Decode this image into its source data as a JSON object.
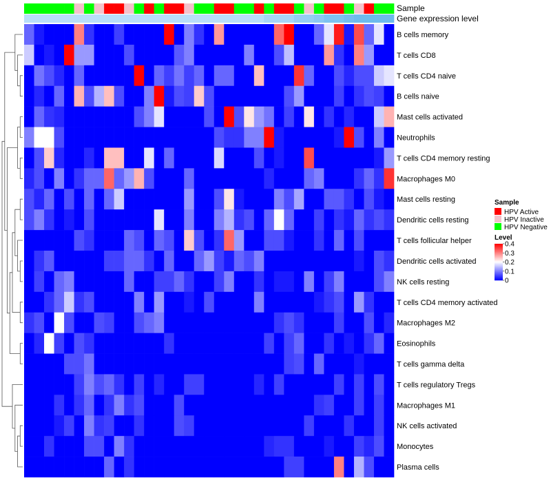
{
  "chart_data": {
    "type": "heatmap",
    "annotations": {
      "sample_label": "Sample",
      "expression_label": "Gene expression level",
      "sample_groups": [
        "G",
        "G",
        "G",
        "G",
        "G",
        "I",
        "G",
        "I",
        "A",
        "A",
        "I",
        "G",
        "A",
        "G",
        "A",
        "A",
        "I",
        "G",
        "G",
        "A",
        "A",
        "G",
        "G",
        "A",
        "G",
        "A",
        "A",
        "G",
        "I",
        "G",
        "A",
        "A",
        "G",
        "I",
        "A",
        "G",
        "G"
      ],
      "expression_colors": [
        "#B9DEF9",
        "#B9DEF9",
        "#B9DEF9",
        "#B9DEF9",
        "#B9DEF9",
        "#B9DEF9",
        "#B9DEF9",
        "#B9DEF9",
        "#B9DEF9",
        "#B9DEF9",
        "#B9DEF9",
        "#B9DEF9",
        "#B9DEF9",
        "#B9DEF9",
        "#B9DEF9",
        "#B9DEF9",
        "#B9DEF9",
        "#B9DEF9",
        "#B9DEF9",
        "#B9DEF9",
        "#B9DEF9",
        "#B9DEF9",
        "#B9DEF9",
        "#B9DEF9",
        "#A7D6F6",
        "#A7D6F6",
        "#A7D6F6",
        "#96CEF3",
        "#96CEF3",
        "#8CC9F2",
        "#7EC3F0",
        "#7EC3F0",
        "#74BEEE",
        "#6DBBED",
        "#6DBBED",
        "#6DBBED",
        "#6DBBED"
      ]
    },
    "rows": [
      "B cells memory",
      "T cells CD8",
      "T cells CD4 naive",
      "B cells naive",
      "Mast cells activated",
      "Neutrophils",
      "T cells CD4 memory resting",
      "Macrophages M0",
      "Mast cells resting",
      "Dendritic cells resting",
      "T cells follicular helper",
      "Dendritic cells activated",
      "NK cells resting",
      "T cells CD4 memory activated",
      "Macrophages M2",
      "Eosinophils",
      "T cells gamma delta",
      "T cells regulatory  Tregs",
      "Macrophages M1",
      "NK cells activated",
      "Monocytes",
      "Plasma cells"
    ],
    "values": [
      [
        0.08,
        0.02,
        0,
        0,
        0,
        0.3,
        0.04,
        0,
        0,
        0.05,
        0,
        0,
        0,
        0,
        0.4,
        0,
        0.1,
        0.04,
        0,
        0.28,
        0,
        0,
        0,
        0,
        0,
        0.32,
        0.4,
        0,
        0,
        0.08,
        0.18,
        0.38,
        0.02,
        0.34,
        0.08,
        0.18,
        0
      ],
      [
        0.16,
        0,
        0.02,
        0,
        0.4,
        0.12,
        0.12,
        0,
        0,
        0,
        0.06,
        0,
        0,
        0,
        0,
        0.07,
        0.1,
        0,
        0,
        0,
        0,
        0,
        0.1,
        0,
        0,
        0.06,
        0.15,
        0,
        0,
        0,
        0.28,
        0.04,
        0,
        0.3,
        0.12,
        0,
        0
      ],
      [
        0,
        0.09,
        0.06,
        0.03,
        0,
        0.08,
        0,
        0,
        0,
        0,
        0,
        0.4,
        0,
        0.08,
        0.05,
        0.09,
        0.05,
        0.08,
        0,
        0.08,
        0.08,
        0,
        0,
        0.25,
        0,
        0,
        0,
        0.36,
        0.08,
        0,
        0,
        0.06,
        0.03,
        0.06,
        0.06,
        0.16,
        0.18
      ],
      [
        0,
        0.03,
        0,
        0.08,
        0,
        0.26,
        0.06,
        0.14,
        0.25,
        0.06,
        0,
        0,
        0.1,
        0.4,
        0.02,
        0.06,
        0.05,
        0.24,
        0.06,
        0,
        0,
        0,
        0,
        0,
        0,
        0,
        0.06,
        0.12,
        0,
        0,
        0,
        0.05,
        0,
        0.04,
        0.06,
        0.05,
        0
      ],
      [
        0,
        0.08,
        0.04,
        0.03,
        0,
        0,
        0,
        0,
        0,
        0,
        0,
        0.06,
        0.1,
        0.18,
        0,
        0,
        0,
        0,
        0.06,
        0,
        0.4,
        0.06,
        0.22,
        0.12,
        0.09,
        0,
        0.05,
        0,
        0.22,
        0,
        0.04,
        0,
        0.03,
        0,
        0,
        0.16,
        0.26
      ],
      [
        0.1,
        0.2,
        0.2,
        0.06,
        0,
        0,
        0,
        0,
        0,
        0,
        0,
        0,
        0,
        0,
        0,
        0,
        0,
        0,
        0,
        0.06,
        0.04,
        0.04,
        0.1,
        0.1,
        0.4,
        0.02,
        0,
        0,
        0,
        0,
        0,
        0.02,
        0.4,
        0.06,
        0,
        0.1,
        0
      ],
      [
        0,
        0.06,
        0.24,
        0.03,
        0,
        0,
        0.03,
        0,
        0.25,
        0.25,
        0,
        0,
        0.18,
        0,
        0.08,
        0,
        0,
        0,
        0,
        0.17,
        0,
        0,
        0,
        0.06,
        0,
        0.02,
        0,
        0,
        0.34,
        0,
        0,
        0,
        0,
        0,
        0,
        0.02,
        0.12
      ],
      [
        0.03,
        0.06,
        0,
        0.1,
        0,
        0.04,
        0.08,
        0.08,
        0.32,
        0.08,
        0.12,
        0.26,
        0.06,
        0,
        0,
        0,
        0.08,
        0,
        0,
        0,
        0,
        0,
        0,
        0,
        0.03,
        0,
        0,
        0,
        0.08,
        0.1,
        0,
        0,
        0,
        0.04,
        0.08,
        0.04,
        0.36
      ],
      [
        0.06,
        0.03,
        0.08,
        0,
        0.06,
        0,
        0.08,
        0,
        0.08,
        0.16,
        0,
        0,
        0,
        0,
        0,
        0,
        0.12,
        0,
        0,
        0.06,
        0.22,
        0.02,
        0,
        0,
        0,
        0.1,
        0.06,
        0.13,
        0,
        0,
        0.07,
        0.07,
        0.04,
        0,
        0.06,
        0.02,
        0
      ],
      [
        0.06,
        0.1,
        0.04,
        0,
        0.02,
        0,
        0.06,
        0,
        0,
        0,
        0,
        0,
        0,
        0.18,
        0,
        0,
        0.1,
        0,
        0,
        0.1,
        0.14,
        0.04,
        0.06,
        0,
        0.08,
        0.2,
        0.08,
        0,
        0,
        0.05,
        0,
        0.04,
        0.02,
        0.08,
        0.04,
        0.06,
        0.04
      ],
      [
        0,
        0,
        0,
        0,
        0,
        0.06,
        0.04,
        0,
        0,
        0,
        0.08,
        0.06,
        0,
        0.08,
        0.06,
        0,
        0.24,
        0.06,
        0,
        0.04,
        0.32,
        0.12,
        0,
        0,
        0.06,
        0.06,
        0.02,
        0,
        0,
        0.04,
        0,
        0.08,
        0,
        0.06,
        0,
        0,
        0
      ],
      [
        0,
        0.04,
        0.07,
        0,
        0,
        0,
        0,
        0,
        0.05,
        0.05,
        0.08,
        0.08,
        0.04,
        0,
        0.08,
        0,
        0,
        0.08,
        0.12,
        0.05,
        0.02,
        0.08,
        0.06,
        0.1,
        0,
        0,
        0,
        0,
        0,
        0,
        0,
        0,
        0,
        0.02,
        0,
        0.06,
        0.04
      ],
      [
        0,
        0.05,
        0,
        0.08,
        0.1,
        0,
        0,
        0,
        0,
        0,
        0.08,
        0,
        0,
        0.05,
        0.05,
        0.08,
        0.04,
        0,
        0,
        0.05,
        0.1,
        0,
        0,
        0.04,
        0,
        0.02,
        0.02,
        0,
        0.1,
        0,
        0.05,
        0.1,
        0,
        0,
        0,
        0.06,
        0.1
      ],
      [
        0,
        0,
        0.04,
        0.08,
        0.16,
        0.04,
        0.06,
        0,
        0,
        0,
        0,
        0.1,
        0,
        0.12,
        0,
        0,
        0.02,
        0,
        0.06,
        0,
        0,
        0,
        0,
        0.1,
        0,
        0,
        0,
        0,
        0,
        0.02,
        0.04,
        0.06,
        0,
        0.12,
        0.04,
        0,
        0
      ],
      [
        0.04,
        0.06,
        0,
        0.2,
        0.06,
        0,
        0,
        0.06,
        0.05,
        0,
        0,
        0.06,
        0.08,
        0.1,
        0,
        0,
        0,
        0,
        0,
        0,
        0,
        0,
        0,
        0,
        0,
        0.04,
        0.06,
        0.04,
        0,
        0,
        0,
        0.05,
        0,
        0,
        0.06,
        0,
        0.03
      ],
      [
        0,
        0.03,
        0.2,
        0.05,
        0,
        0.06,
        0.04,
        0,
        0,
        0,
        0,
        0,
        0,
        0,
        0.04,
        0,
        0,
        0,
        0,
        0,
        0,
        0,
        0,
        0,
        0.05,
        0,
        0.05,
        0.08,
        0,
        0,
        0.04,
        0,
        0.02,
        0,
        0.04,
        0.08,
        0
      ],
      [
        0,
        0,
        0,
        0,
        0.06,
        0.06,
        0.09,
        0,
        0,
        0,
        0,
        0,
        0,
        0,
        0,
        0,
        0,
        0,
        0,
        0,
        0,
        0,
        0,
        0,
        0,
        0,
        0.05,
        0.06,
        0,
        0.08,
        0,
        0,
        0,
        0.02,
        0,
        0,
        0
      ],
      [
        0,
        0,
        0,
        0,
        0,
        0.05,
        0.1,
        0.06,
        0.08,
        0.04,
        0,
        0.05,
        0,
        0.03,
        0,
        0,
        0.05,
        0.05,
        0,
        0,
        0,
        0,
        0,
        0.03,
        0,
        0.05,
        0,
        0,
        0,
        0,
        0,
        0.05,
        0,
        0.05,
        0,
        0.06,
        0
      ],
      [
        0,
        0,
        0,
        0.04,
        0,
        0.04,
        0.08,
        0,
        0.04,
        0.1,
        0.04,
        0.06,
        0,
        0,
        0,
        0.06,
        0,
        0,
        0,
        0,
        0,
        0,
        0,
        0,
        0,
        0,
        0,
        0,
        0,
        0.04,
        0.05,
        0,
        0,
        0.05,
        0,
        0.05,
        0
      ],
      [
        0,
        0,
        0,
        0.02,
        0.05,
        0,
        0.1,
        0.04,
        0.05,
        0,
        0,
        0.04,
        0,
        0,
        0,
        0.06,
        0.05,
        0,
        0,
        0,
        0,
        0,
        0,
        0,
        0,
        0,
        0,
        0,
        0.05,
        0,
        0,
        0,
        0.04,
        0,
        0,
        0.05,
        0
      ],
      [
        0,
        0,
        0.04,
        0,
        0,
        0,
        0.06,
        0.06,
        0,
        0.1,
        0.04,
        0,
        0,
        0,
        0,
        0,
        0,
        0,
        0,
        0,
        0,
        0,
        0,
        0,
        0.03,
        0.04,
        0.04,
        0,
        0,
        0,
        0.02,
        0,
        0,
        0.05,
        0.03,
        0.06,
        0
      ],
      [
        0,
        0,
        0,
        0,
        0,
        0,
        0,
        0,
        0.08,
        0,
        0.04,
        0,
        0,
        0,
        0,
        0,
        0,
        0,
        0,
        0,
        0,
        0,
        0,
        0,
        0,
        0,
        0.05,
        0.05,
        0,
        0,
        0,
        0.3,
        0,
        0.14,
        0.06,
        0,
        0
      ]
    ],
    "legend_sample": {
      "title": "Sample",
      "entries": [
        {
          "key": "A",
          "label": "HPV Active",
          "color": "#FF0000"
        },
        {
          "key": "I",
          "label": "HPV Inactive",
          "color": "#F4C2CB"
        },
        {
          "key": "G",
          "label": "HPV Negative",
          "color": "#00FF00"
        }
      ]
    },
    "legend_level": {
      "title": "Level",
      "ticks": [
        "0.4",
        "0.3",
        "0.2",
        "0.1",
        "0"
      ],
      "tick_values": [
        0.4,
        0.3,
        0.2,
        0.1,
        0
      ],
      "range": [
        0,
        0.4
      ],
      "colors": {
        "low": "#0000FF",
        "mid": "#FFFFFF",
        "high": "#FF0000",
        "mid_value": 0.2
      }
    },
    "dendrogram": {
      "tree": [
        [
          [
            0,
            [
              1,
              [
                2,
                3
              ]
            ]
          ],
          [
            [
              [
                4,
                5
              ],
              [
                6,
                7
              ]
            ],
            [
              [
                [
                  [
                    8,
                    9
                  ],
                  [
                    10,
                    [
                      11,
                      12
                    ]
                  ]
                ],
                [
                  13,
                  14
                ]
              ],
              [
                15,
                16
              ]
            ]
          ]
        ],
        [
          17,
          [
            18,
            [
              [
                19,
                20
              ],
              21
            ]
          ]
        ]
      ]
    }
  }
}
